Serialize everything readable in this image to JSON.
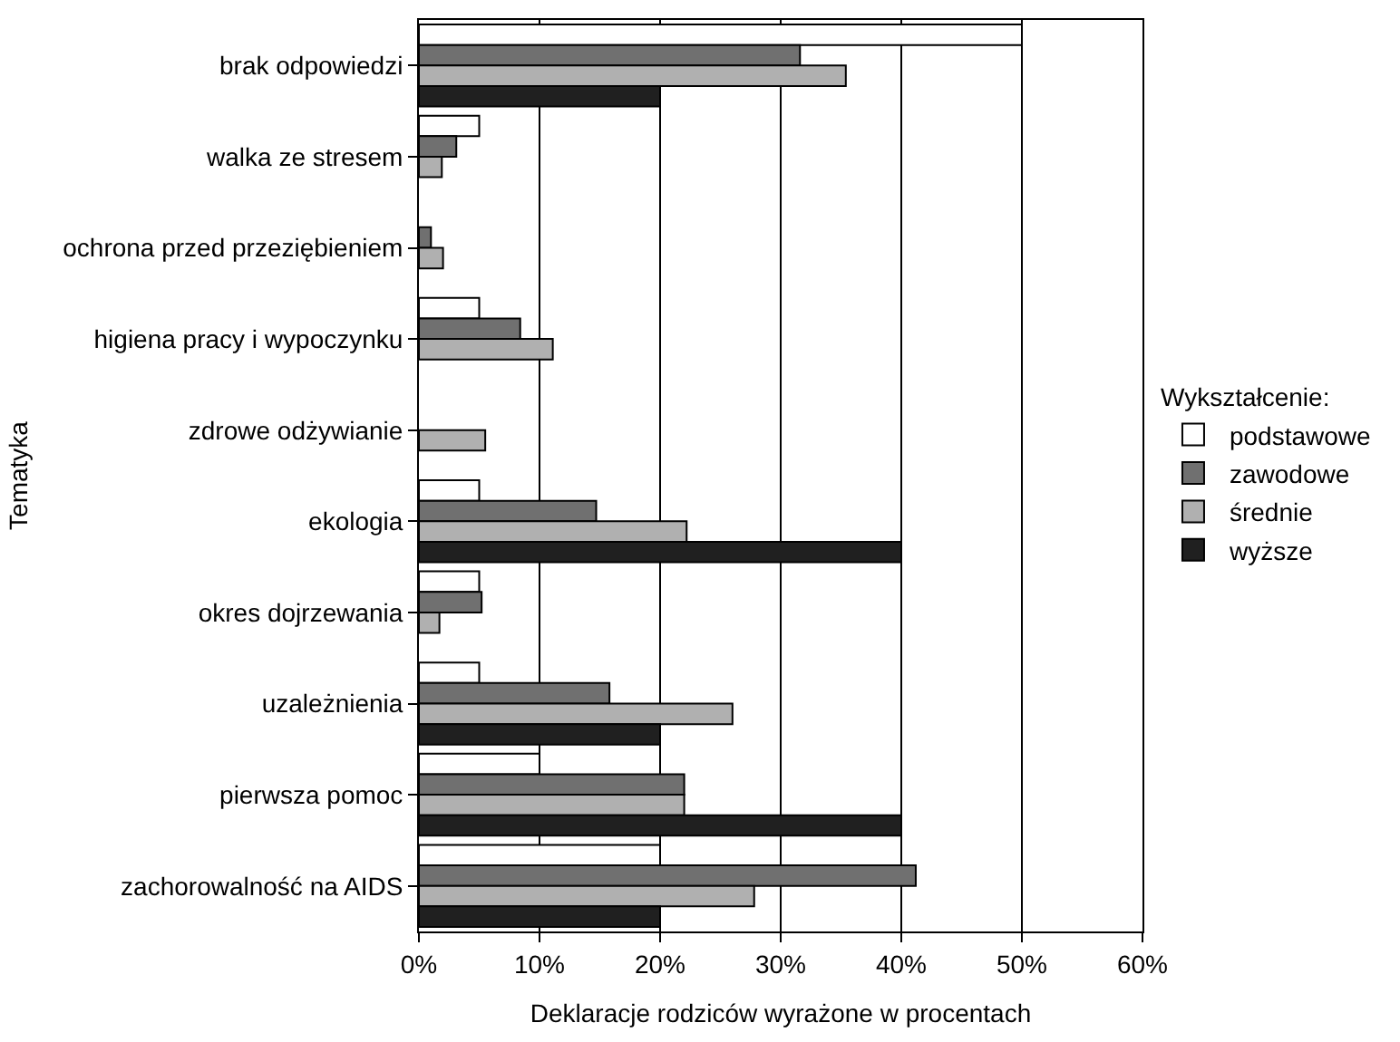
{
  "chart_data": {
    "type": "bar",
    "orientation": "horizontal",
    "xlabel": "Deklaracje rodziców wyrażone w procentach",
    "ylabel": "Tematyka",
    "legend_title": "Wykształcenie:",
    "legend": "right",
    "grid": "x",
    "categories": [
      "brak odpowiedzi",
      "walka ze stresem",
      "ochrona przed przeziębieniem",
      "higiena pracy i wypoczynku",
      "zdrowe odżywianie",
      "ekologia",
      "okres dojrzewania",
      "uzależnienia",
      "pierwsza pomoc",
      "zachorowalność na AIDS"
    ],
    "xlim": [
      0,
      60
    ],
    "xticks": [
      {
        "value": 0,
        "label": "0%"
      },
      {
        "value": 10,
        "label": "10%"
      },
      {
        "value": 20,
        "label": "20%"
      },
      {
        "value": 30,
        "label": "30%"
      },
      {
        "value": 40,
        "label": "40%"
      },
      {
        "value": 50,
        "label": "50%"
      },
      {
        "value": 60,
        "label": "60%"
      }
    ],
    "series": [
      {
        "name": "podstawowe",
        "color": "#ffffff",
        "values": [
          50,
          5,
          0,
          5,
          0,
          5,
          5,
          5,
          10,
          20
        ]
      },
      {
        "name": "zawodowe",
        "color": "#707070",
        "values": [
          31.6,
          3.1,
          1,
          8.4,
          0,
          14.7,
          5.2,
          15.8,
          22,
          41.2
        ]
      },
      {
        "name": "średnie",
        "color": "#b0b0b0",
        "values": [
          35.4,
          1.9,
          2,
          11.1,
          5.5,
          22.2,
          1.7,
          26,
          22,
          27.8
        ]
      },
      {
        "name": "wyższe",
        "color": "#202020",
        "values": [
          20,
          0,
          0,
          0,
          0,
          40,
          0,
          20,
          40,
          20
        ]
      }
    ]
  }
}
